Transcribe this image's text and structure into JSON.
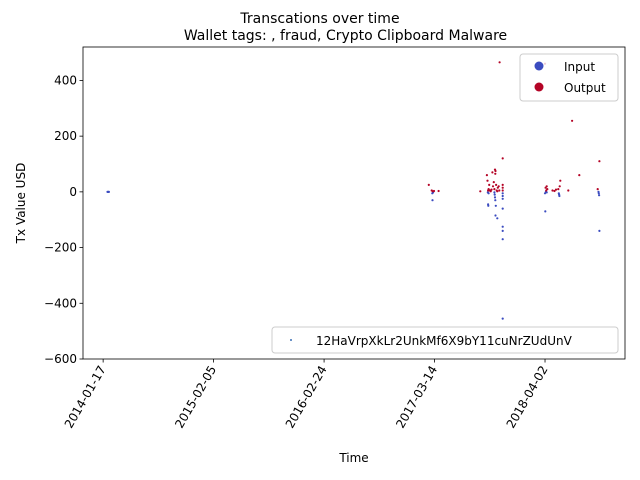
{
  "chart_data": {
    "type": "scatter",
    "suptitle": "Transcations over time",
    "title": "Wallet tags: , fraud, Crypto Clipboard Malware",
    "xlabel": "Time",
    "ylabel": "Tx Value USD",
    "ylim": [
      -600,
      520
    ],
    "yticks": [
      -600,
      -400,
      -200,
      0,
      200,
      400
    ],
    "xticks": [
      "2014-01-17",
      "2015-02-05",
      "2016-02-24",
      "2017-03-14",
      "2018-04-02"
    ],
    "xlim": [
      "2013-11-08",
      "2019-01-05"
    ],
    "grid": false,
    "legend_hue": {
      "position": "upper right",
      "entries": [
        {
          "label": "Input",
          "color": "#3b4cc0"
        },
        {
          "label": "Output",
          "color": "#b40426"
        }
      ]
    },
    "legend_series": {
      "position": "lower right",
      "label": "12HaVrpXkLr2UnkMf6X9bY11cuNrZUdUnV",
      "color": "#3b6fb5"
    },
    "series": [
      {
        "name": "Input",
        "color": "#3b4cc0",
        "points": [
          [
            "2014-02-01",
            0
          ],
          [
            "2014-02-04",
            0
          ],
          [
            "2014-02-06",
            0
          ],
          [
            "2017-03-06",
            -5
          ],
          [
            "2017-03-07",
            -30
          ],
          [
            "2017-03-09",
            -2
          ],
          [
            "2017-09-15",
            -2
          ],
          [
            "2017-09-16",
            -45
          ],
          [
            "2017-09-17",
            -50
          ],
          [
            "2017-09-18",
            -5
          ],
          [
            "2017-10-08",
            -2
          ],
          [
            "2017-10-09",
            -10
          ],
          [
            "2017-10-10",
            -20
          ],
          [
            "2017-10-11",
            -30
          ],
          [
            "2017-10-12",
            -85
          ],
          [
            "2017-10-13",
            -50
          ],
          [
            "2017-10-18",
            -95
          ],
          [
            "2017-11-06",
            -5
          ],
          [
            "2017-11-06",
            -15
          ],
          [
            "2017-11-06",
            -25
          ],
          [
            "2017-11-06",
            -60
          ],
          [
            "2017-11-06",
            -125
          ],
          [
            "2017-11-06",
            -140
          ],
          [
            "2017-11-06",
            -170
          ],
          [
            "2017-11-06",
            -455
          ],
          [
            "2018-04-02",
            -5
          ],
          [
            "2018-04-03",
            -70
          ],
          [
            "2018-04-05",
            0
          ],
          [
            "2018-04-08",
            -2
          ],
          [
            "2018-05-20",
            -5
          ],
          [
            "2018-05-21",
            -10
          ],
          [
            "2018-05-22",
            -15
          ],
          [
            "2018-10-05",
            0
          ],
          [
            "2018-10-06",
            -5
          ],
          [
            "2018-10-07",
            -12
          ],
          [
            "2018-10-08",
            -140
          ]
        ]
      },
      {
        "name": "Output",
        "color": "#b40426",
        "points": [
          [
            "2017-02-22",
            25
          ],
          [
            "2017-03-04",
            5
          ],
          [
            "2017-03-08",
            2
          ],
          [
            "2017-03-12",
            3
          ],
          [
            "2017-03-28",
            3
          ],
          [
            "2017-08-20",
            2
          ],
          [
            "2017-09-12",
            60
          ],
          [
            "2017-09-14",
            40
          ],
          [
            "2017-09-16",
            5
          ],
          [
            "2017-09-18",
            10
          ],
          [
            "2017-09-20",
            25
          ],
          [
            "2017-09-22",
            5
          ],
          [
            "2017-09-25",
            2
          ],
          [
            "2017-09-28",
            8
          ],
          [
            "2017-10-01",
            70
          ],
          [
            "2017-10-03",
            20
          ],
          [
            "2017-10-06",
            35
          ],
          [
            "2017-10-08",
            10
          ],
          [
            "2017-10-10",
            80
          ],
          [
            "2017-10-11",
            65
          ],
          [
            "2017-10-12",
            75
          ],
          [
            "2017-10-14",
            25
          ],
          [
            "2017-10-16",
            5
          ],
          [
            "2017-10-18",
            2
          ],
          [
            "2017-10-20",
            15
          ],
          [
            "2017-10-23",
            20
          ],
          [
            "2017-10-25",
            5
          ],
          [
            "2017-10-26",
            465
          ],
          [
            "2017-11-06",
            120
          ],
          [
            "2017-11-06",
            15
          ],
          [
            "2017-11-06",
            25
          ],
          [
            "2017-11-06",
            5
          ],
          [
            "2018-04-02",
            460
          ],
          [
            "2018-04-04",
            15
          ],
          [
            "2018-04-06",
            5
          ],
          [
            "2018-04-08",
            20
          ],
          [
            "2018-04-10",
            10
          ],
          [
            "2018-04-28",
            5
          ],
          [
            "2018-05-05",
            3
          ],
          [
            "2018-05-10",
            8
          ],
          [
            "2018-05-18",
            10
          ],
          [
            "2018-05-23",
            20
          ],
          [
            "2018-05-25",
            40
          ],
          [
            "2018-06-22",
            5
          ],
          [
            "2018-07-05",
            255
          ],
          [
            "2018-07-30",
            60
          ],
          [
            "2018-10-02",
            10
          ],
          [
            "2018-10-08",
            110
          ]
        ]
      }
    ]
  }
}
